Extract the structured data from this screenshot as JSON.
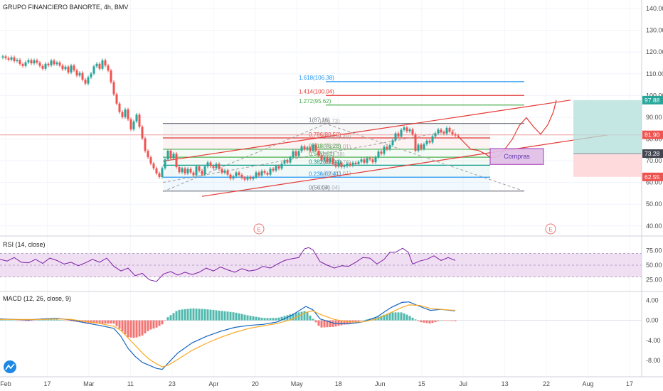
{
  "header": {
    "title": "GRUPO FINANCIERO BANORTE, 4h, BMV"
  },
  "colors": {
    "up": "#26a69a",
    "down": "#ef5350",
    "fib_gray": "#787b86",
    "fib_red": "#e53935",
    "fib_green": "#4caf50",
    "fib_teal": "#009688",
    "fib_blue": "#2196f3",
    "channel": "#e53935",
    "rsi_line": "#7b1fa2",
    "rsi_band": "#e1bee7",
    "macd_line": "#1565c0",
    "signal_line": "#f9a825",
    "target_zone": "#b2dfdb",
    "stop_zone": "#ffcdd2",
    "compras_box": "#e1bee7"
  },
  "time_axis": {
    "labels": [
      "Feb",
      "17",
      "Mar",
      "11",
      "23",
      "Apr",
      "20",
      "May",
      "18",
      "Jun",
      "15",
      "Jul",
      "13",
      "22",
      "Aug",
      "17"
    ]
  },
  "price_axis": {
    "labels": [
      "140.00",
      "130.00",
      "120.00",
      "110.00",
      "100.00",
      "90.00",
      "80.00",
      "70.00",
      "60.00",
      "50.00",
      "40.00"
    ],
    "markers": [
      {
        "label": "97.88",
        "value": 97.88,
        "color": "#26a69a"
      },
      {
        "label": "81.90",
        "value": 81.9,
        "color": "#ef5350"
      },
      {
        "label": "73.28",
        "value": 73.28,
        "color": "#434651"
      },
      {
        "label": "62.55",
        "value": 62.55,
        "color": "#ef5350"
      }
    ]
  },
  "fib_levels": [
    {
      "label": "1.618(106.38)",
      "value": 106.38,
      "color": "#2196f3"
    },
    {
      "label": "1.414(100.04)",
      "value": 100.04,
      "color": "#e53935"
    },
    {
      "label": "1.272(95.62)",
      "value": 95.62,
      "color": "#4caf50"
    },
    {
      "label": "1(87.16)",
      "value": 87.16,
      "color": "#787b86"
    },
    {
      "label": "0.786(80.50)",
      "value": 80.5,
      "color": "#e53935"
    },
    {
      "label": "0.618(75.28)",
      "value": 75.28,
      "color": "#4caf50"
    },
    {
      "label": "0.5(71.61)",
      "value": 71.61,
      "color": "#4caf50"
    },
    {
      "label": "0.382(67.94)",
      "value": 67.94,
      "color": "#009688"
    },
    {
      "label": "0.236(62.41)",
      "value": 62.41,
      "color": "#2196f3"
    },
    {
      "label": "0(56.04)",
      "value": 56.04,
      "color": "#787b86"
    }
  ],
  "fib_levels_extra": [
    {
      "label": "1(86.73)",
      "value": 86.73
    },
    {
      "label": "0.236(79.49)",
      "value": 79.49
    },
    {
      "label": "0.382(75.01)",
      "value": 75.01
    },
    {
      "label": "0.5(71.38)",
      "value": 71.38
    },
    {
      "label": "0.618(67.76)",
      "value": 67.76
    },
    {
      "label": "0.786(62.61)",
      "value": 62.61
    },
    {
      "label": "0(56.04)",
      "value": 56.04
    }
  ],
  "annotations": {
    "compras": "Compras",
    "earnings_1": "E",
    "earnings_2": "E"
  },
  "rsi": {
    "label": "RSI (14, close)",
    "axis": [
      "75.00",
      "50.00",
      "25.00"
    ]
  },
  "macd": {
    "label": "MACD (12, 26, close, 9)",
    "axis": [
      "4.00",
      "0.00",
      "-4.00",
      "-8.00"
    ]
  },
  "chart_data": {
    "type": "line",
    "title": "GRUPO FINANCIERO BANORTE, 4h, BMV",
    "price_range": [
      36,
      142
    ],
    "close_series": [
      [
        0,
        117.5
      ],
      [
        4,
        118
      ],
      [
        8,
        117.2
      ],
      [
        12,
        116.5
      ],
      [
        16,
        117.6
      ],
      [
        20,
        115.8
      ],
      [
        24,
        116.4
      ],
      [
        28,
        114.5
      ],
      [
        32,
        113.6
      ],
      [
        36,
        115.3
      ],
      [
        40,
        116.3
      ],
      [
        44,
        114.8
      ],
      [
        48,
        116.2
      ],
      [
        52,
        115.1
      ],
      [
        56,
        113.6
      ],
      [
        60,
        112.3
      ],
      [
        64,
        114.6
      ],
      [
        68,
        113.9
      ],
      [
        72,
        116.1
      ],
      [
        76,
        114.4
      ],
      [
        80,
        115.2
      ],
      [
        84,
        113.8
      ],
      [
        88,
        112.1
      ],
      [
        92,
        113.3
      ],
      [
        96,
        110.6
      ],
      [
        100,
        113.8
      ],
      [
        104,
        111.6
      ],
      [
        108,
        109.2
      ],
      [
        112,
        110.4
      ],
      [
        116,
        107.3
      ],
      [
        120,
        105.5
      ],
      [
        124,
        108.4
      ],
      [
        128,
        110.1
      ],
      [
        132,
        113.4
      ],
      [
        136,
        114.6
      ],
      [
        140,
        112.3
      ],
      [
        144,
        116.2
      ],
      [
        148,
        113.8
      ],
      [
        152,
        111.5
      ],
      [
        156,
        106.2
      ],
      [
        160,
        100.6
      ],
      [
        164,
        96.3
      ],
      [
        168,
        92.4
      ],
      [
        172,
        90.1
      ],
      [
        176,
        93.6
      ],
      [
        180,
        89.1
      ],
      [
        184,
        84.4
      ],
      [
        188,
        88.1
      ],
      [
        192,
        91.2
      ],
      [
        196,
        85.6
      ],
      [
        200,
        80.3
      ],
      [
        204,
        74.5
      ],
      [
        208,
        71.6
      ],
      [
        212,
        68.7
      ],
      [
        216,
        66.5
      ],
      [
        220,
        64.2
      ],
      [
        224,
        62.5
      ],
      [
        228,
        66.6
      ],
      [
        232,
        70.6
      ],
      [
        236,
        74.6
      ],
      [
        240,
        71.1
      ],
      [
        244,
        73.2
      ],
      [
        248,
        67.1
      ],
      [
        252,
        64.7
      ],
      [
        256,
        66.5
      ],
      [
        260,
        64.2
      ],
      [
        264,
        66.2
      ],
      [
        268,
        64.6
      ],
      [
        272,
        63.3
      ],
      [
        276,
        67.4
      ],
      [
        280,
        65.4
      ],
      [
        284,
        63.6
      ],
      [
        288,
        67.4
      ],
      [
        292,
        69.2
      ],
      [
        296,
        67.5
      ],
      [
        300,
        66.6
      ],
      [
        304,
        68.5
      ],
      [
        308,
        66.2
      ],
      [
        312,
        64.5
      ],
      [
        316,
        65.5
      ],
      [
        320,
        63.6
      ],
      [
        324,
        61.8
      ],
      [
        328,
        62.8
      ],
      [
        332,
        64.6
      ],
      [
        336,
        63.5
      ],
      [
        340,
        62.1
      ],
      [
        344,
        61.3
      ],
      [
        348,
        62.6
      ],
      [
        352,
        61.6
      ],
      [
        356,
        62.4
      ],
      [
        360,
        64.6
      ],
      [
        364,
        63.2
      ],
      [
        368,
        65.2
      ],
      [
        372,
        64.4
      ],
      [
        376,
        63.6
      ],
      [
        380,
        66.3
      ],
      [
        384,
        65.5
      ],
      [
        388,
        67.5
      ],
      [
        392,
        66.4
      ],
      [
        396,
        68.6
      ],
      [
        400,
        70.2
      ],
      [
        404,
        69.2
      ],
      [
        408,
        71.5
      ],
      [
        412,
        74.3
      ],
      [
        416,
        72.2
      ],
      [
        420,
        74.4
      ],
      [
        424,
        76.6
      ],
      [
        428,
        75.2
      ],
      [
        432,
        76.1
      ],
      [
        436,
        74.5
      ],
      [
        440,
        77.4
      ],
      [
        444,
        74.6
      ],
      [
        448,
        72.5
      ],
      [
        452,
        70.2
      ],
      [
        456,
        71.6
      ],
      [
        460,
        69.4
      ],
      [
        464,
        71.2
      ],
      [
        468,
        68.5
      ],
      [
        472,
        67.3
      ],
      [
        476,
        69.2
      ],
      [
        480,
        67.1
      ],
      [
        484,
        67.5
      ],
      [
        488,
        68.6
      ],
      [
        492,
        67.8
      ],
      [
        496,
        69.1
      ],
      [
        500,
        68.4
      ],
      [
        504,
        69.5
      ],
      [
        508,
        70.6
      ],
      [
        512,
        69.1
      ],
      [
        516,
        71.2
      ],
      [
        520,
        70.6
      ],
      [
        524,
        69.3
      ],
      [
        528,
        71.6
      ],
      [
        532,
        74.2
      ],
      [
        536,
        73.2
      ],
      [
        540,
        76.4
      ],
      [
        544,
        75.3
      ],
      [
        548,
        77.2
      ],
      [
        552,
        79.4
      ],
      [
        556,
        82.6
      ],
      [
        560,
        81.1
      ],
      [
        564,
        84.2
      ],
      [
        568,
        85.3
      ],
      [
        572,
        83.6
      ],
      [
        576,
        84.4
      ],
      [
        580,
        82.1
      ],
      [
        584,
        74.6
      ],
      [
        588,
        77.4
      ],
      [
        592,
        75.5
      ],
      [
        596,
        77.6
      ],
      [
        600,
        79.2
      ],
      [
        604,
        78.4
      ],
      [
        608,
        81.2
      ],
      [
        612,
        82.6
      ],
      [
        616,
        84.3
      ],
      [
        620,
        83.1
      ],
      [
        624,
        82.5
      ],
      [
        628,
        85.1
      ],
      [
        632,
        83.4
      ],
      [
        636,
        82.2
      ],
      [
        640,
        81.6
      ],
      [
        644,
        81.2
      ]
    ],
    "projection": [
      [
        644,
        81.2
      ],
      [
        652,
        78.5
      ],
      [
        662,
        75.2
      ],
      [
        672,
        74.8
      ],
      [
        682,
        73.2
      ],
      [
        690,
        71.4
      ],
      [
        700,
        71.8
      ],
      [
        710,
        75.5
      ],
      [
        720,
        79.8
      ],
      [
        730,
        86.2
      ],
      [
        740,
        89.8
      ],
      [
        750,
        85.6
      ],
      [
        760,
        82.2
      ],
      [
        770,
        86.5
      ],
      [
        778,
        92.5
      ],
      [
        782,
        97.9
      ]
    ],
    "channel": {
      "upper": [
        [
          229,
          69.8
        ],
        [
          802,
          97.9
        ]
      ],
      "lower": [
        [
          284,
          53.6
        ],
        [
          855,
          81.9
        ]
      ],
      "mid_dashed": [
        [
          229,
          60.0
        ],
        [
          640,
          84.2
        ]
      ]
    },
    "fib_extension_x_range": [
      458,
      737
    ],
    "fib_retracement_x_range": [
      229,
      689
    ],
    "fib_diag": [
      [
        229,
        55.8
      ],
      [
        458,
        87.0
      ],
      [
        737,
        56.0
      ]
    ],
    "long_position": {
      "entry": 73.28,
      "target": 97.88,
      "stop": 62.55,
      "x_range": [
        806,
        902
      ]
    },
    "compras_box": {
      "x_range": [
        689,
        764
      ],
      "y_range": [
        68.3,
        75.6
      ]
    },
    "rsi_series": [
      [
        0,
        60
      ],
      [
        10,
        57
      ],
      [
        20,
        63
      ],
      [
        30,
        55
      ],
      [
        40,
        54
      ],
      [
        50,
        60
      ],
      [
        60,
        53
      ],
      [
        70,
        62
      ],
      [
        80,
        58
      ],
      [
        90,
        52
      ],
      [
        100,
        55
      ],
      [
        110,
        49
      ],
      [
        120,
        54
      ],
      [
        130,
        60
      ],
      [
        140,
        55
      ],
      [
        150,
        62
      ],
      [
        160,
        48
      ],
      [
        170,
        40
      ],
      [
        180,
        45
      ],
      [
        190,
        32
      ],
      [
        200,
        36
      ],
      [
        210,
        25
      ],
      [
        220,
        22
      ],
      [
        230,
        35
      ],
      [
        240,
        39
      ],
      [
        250,
        33
      ],
      [
        260,
        38
      ],
      [
        270,
        34
      ],
      [
        280,
        38
      ],
      [
        290,
        45
      ],
      [
        300,
        40
      ],
      [
        310,
        47
      ],
      [
        320,
        42
      ],
      [
        330,
        38
      ],
      [
        340,
        44
      ],
      [
        350,
        40
      ],
      [
        360,
        42
      ],
      [
        370,
        48
      ],
      [
        380,
        45
      ],
      [
        390,
        52
      ],
      [
        400,
        58
      ],
      [
        410,
        61
      ],
      [
        420,
        63
      ],
      [
        428,
        78
      ],
      [
        434,
        80
      ],
      [
        440,
        76
      ],
      [
        450,
        56
      ],
      [
        460,
        50
      ],
      [
        470,
        45
      ],
      [
        480,
        49
      ],
      [
        490,
        48
      ],
      [
        500,
        55
      ],
      [
        510,
        63
      ],
      [
        520,
        62
      ],
      [
        530,
        52
      ],
      [
        540,
        60
      ],
      [
        548,
        72
      ],
      [
        556,
        72
      ],
      [
        566,
        79
      ],
      [
        574,
        72
      ],
      [
        580,
        52
      ],
      [
        590,
        57
      ],
      [
        600,
        60
      ],
      [
        610,
        66
      ],
      [
        620,
        58
      ],
      [
        630,
        63
      ],
      [
        640,
        58
      ]
    ],
    "rsi_range": [
      5,
      95
    ],
    "macd_series": [
      [
        0,
        0.3
      ],
      [
        20,
        0.2
      ],
      [
        40,
        0.1
      ],
      [
        60,
        0.3
      ],
      [
        80,
        0.4
      ],
      [
        100,
        0.1
      ],
      [
        120,
        -0.5
      ],
      [
        140,
        -1.0
      ],
      [
        160,
        -1.6
      ],
      [
        170,
        -3.2
      ],
      [
        180,
        -5.6
      ],
      [
        190,
        -7.2
      ],
      [
        200,
        -8.4
      ],
      [
        210,
        -9.0
      ],
      [
        220,
        -9.6
      ],
      [
        228,
        -9.8
      ],
      [
        236,
        -8.6
      ],
      [
        250,
        -6.5
      ],
      [
        270,
        -4.5
      ],
      [
        290,
        -3.2
      ],
      [
        310,
        -2.2
      ],
      [
        330,
        -1.4
      ],
      [
        350,
        -1.0
      ],
      [
        370,
        -0.8
      ],
      [
        390,
        -0.3
      ],
      [
        410,
        1.0
      ],
      [
        430,
        2.8
      ],
      [
        440,
        2.1
      ],
      [
        450,
        0.3
      ],
      [
        470,
        -0.6
      ],
      [
        490,
        -0.7
      ],
      [
        510,
        -0.3
      ],
      [
        530,
        0.7
      ],
      [
        550,
        2.6
      ],
      [
        565,
        3.6
      ],
      [
        575,
        3.7
      ],
      [
        590,
        2.8
      ],
      [
        605,
        2.0
      ],
      [
        620,
        2.2
      ],
      [
        640,
        1.9
      ]
    ],
    "signal_series": [
      [
        0,
        0.2
      ],
      [
        20,
        0.2
      ],
      [
        40,
        0.2
      ],
      [
        60,
        0.2
      ],
      [
        80,
        0.3
      ],
      [
        100,
        0.2
      ],
      [
        120,
        -0.2
      ],
      [
        140,
        -0.6
      ],
      [
        160,
        -1.2
      ],
      [
        170,
        -2.0
      ],
      [
        180,
        -3.5
      ],
      [
        190,
        -5.0
      ],
      [
        200,
        -6.5
      ],
      [
        210,
        -7.8
      ],
      [
        220,
        -8.7
      ],
      [
        228,
        -9.3
      ],
      [
        236,
        -9.0
      ],
      [
        250,
        -7.8
      ],
      [
        270,
        -6.0
      ],
      [
        290,
        -4.6
      ],
      [
        310,
        -3.4
      ],
      [
        330,
        -2.4
      ],
      [
        350,
        -1.6
      ],
      [
        370,
        -1.1
      ],
      [
        390,
        -0.6
      ],
      [
        410,
        0.2
      ],
      [
        430,
        1.6
      ],
      [
        440,
        1.9
      ],
      [
        450,
        1.2
      ],
      [
        470,
        0.2
      ],
      [
        490,
        -0.3
      ],
      [
        510,
        -0.3
      ],
      [
        530,
        0.3
      ],
      [
        550,
        1.6
      ],
      [
        565,
        2.6
      ],
      [
        575,
        3.1
      ],
      [
        590,
        3.0
      ],
      [
        605,
        2.4
      ],
      [
        620,
        2.2
      ],
      [
        640,
        2.0
      ]
    ],
    "macd_range": [
      -11,
      5.5
    ]
  }
}
